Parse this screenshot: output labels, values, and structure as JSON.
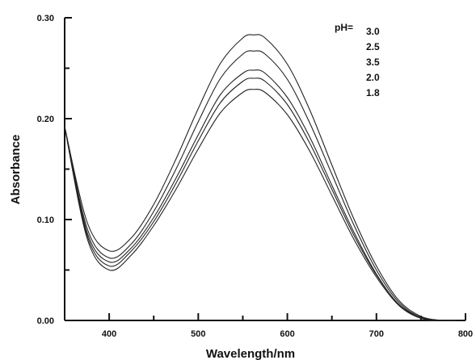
{
  "chart_data": {
    "type": "line",
    "xlabel": "Wavelength/nm",
    "ylabel": "Absorbance",
    "xlim": [
      350,
      800
    ],
    "ylim": [
      0,
      0.3
    ],
    "x_ticks": [
      "400",
      "500",
      "600",
      "700",
      "800"
    ],
    "y_ticks": [
      "0.00",
      "0.10",
      "0.20",
      "0.30"
    ],
    "grid": false,
    "legend_position": "top-right",
    "legend_prefix": "pH=",
    "x": [
      350,
      375,
      400,
      425,
      450,
      475,
      500,
      525,
      550,
      562,
      575,
      600,
      625,
      650,
      675,
      700,
      725,
      750,
      775,
      790
    ],
    "series": [
      {
        "name": "3.0",
        "values": [
          0.192,
          0.098,
          0.069,
          0.082,
          0.115,
          0.16,
          0.21,
          0.255,
          0.28,
          0.283,
          0.28,
          0.254,
          0.209,
          0.154,
          0.1,
          0.054,
          0.02,
          0.004,
          0.0,
          0.0
        ]
      },
      {
        "name": "2.5",
        "values": [
          0.192,
          0.092,
          0.062,
          0.076,
          0.108,
          0.15,
          0.197,
          0.24,
          0.264,
          0.267,
          0.264,
          0.239,
          0.196,
          0.145,
          0.094,
          0.05,
          0.018,
          0.003,
          0.0,
          0.0
        ]
      },
      {
        "name": "3.5",
        "values": [
          0.192,
          0.088,
          0.058,
          0.072,
          0.102,
          0.141,
          0.184,
          0.224,
          0.245,
          0.248,
          0.245,
          0.221,
          0.182,
          0.134,
          0.087,
          0.046,
          0.016,
          0.003,
          0.0,
          0.0
        ]
      },
      {
        "name": "2.0",
        "values": [
          0.192,
          0.085,
          0.054,
          0.069,
          0.098,
          0.136,
          0.178,
          0.216,
          0.237,
          0.24,
          0.237,
          0.214,
          0.176,
          0.13,
          0.084,
          0.045,
          0.016,
          0.003,
          0.0,
          0.0
        ]
      },
      {
        "name": "1.8",
        "values": [
          0.192,
          0.082,
          0.05,
          0.065,
          0.094,
          0.13,
          0.17,
          0.206,
          0.226,
          0.229,
          0.226,
          0.204,
          0.168,
          0.124,
          0.08,
          0.043,
          0.015,
          0.002,
          0.0,
          0.0
        ]
      }
    ]
  }
}
